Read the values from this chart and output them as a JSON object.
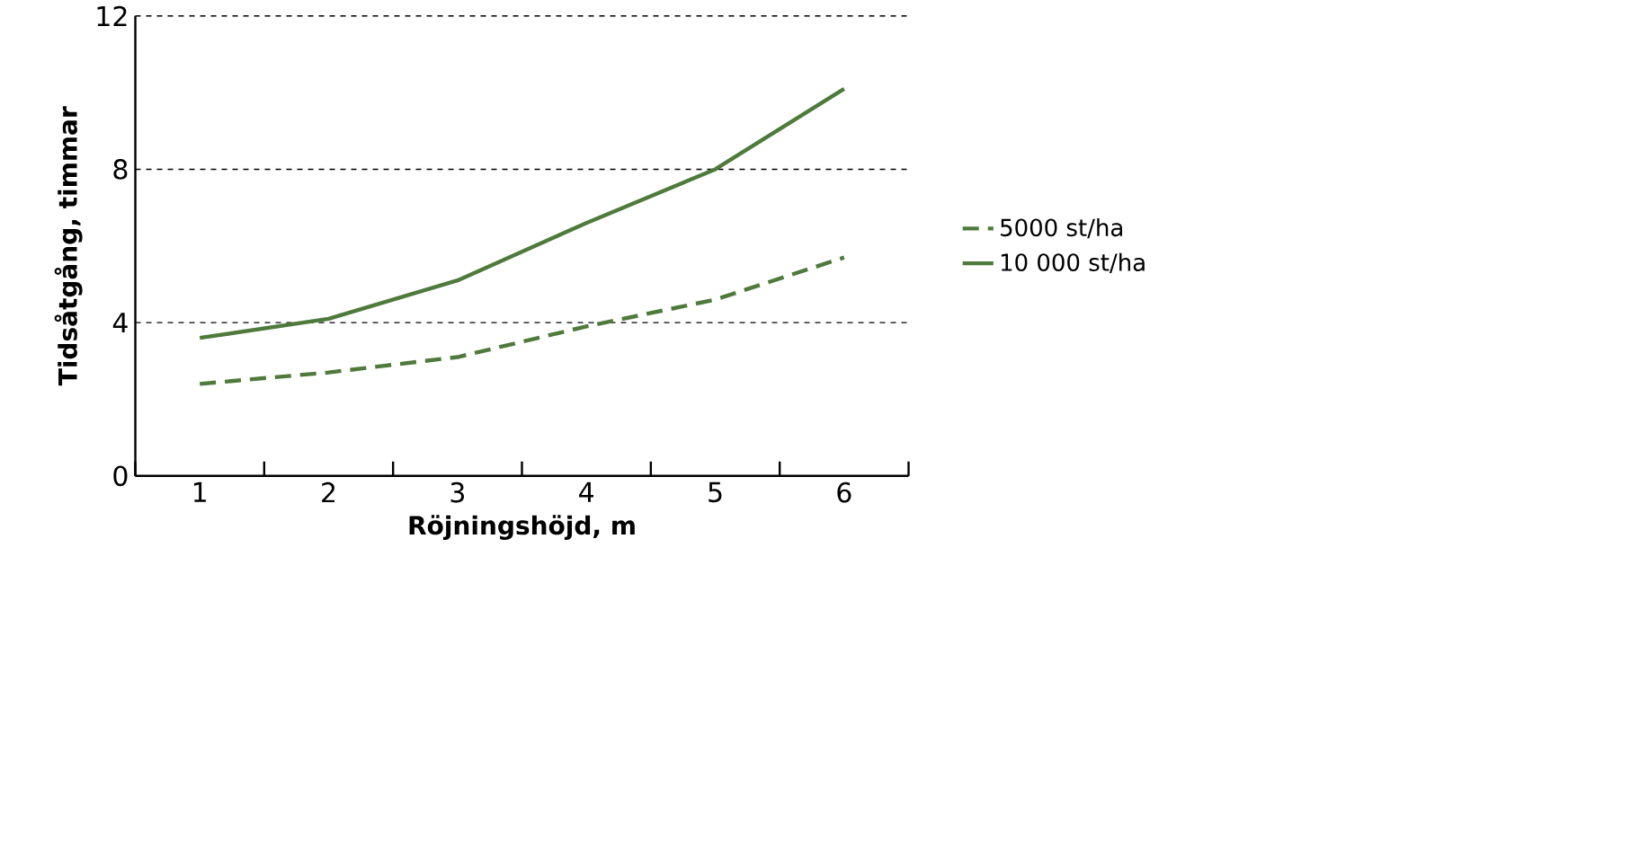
{
  "chart_data": {
    "type": "line",
    "xlabel": "Röjningshöjd, m",
    "ylabel": "Tidsåtgång, timmar",
    "categories": [
      "1",
      "2",
      "3",
      "4",
      "5",
      "6"
    ],
    "series": [
      {
        "name": "5000 st/ha",
        "color": "#4e7a3c",
        "line_style": "dashed",
        "values": [
          2.4,
          2.7,
          3.1,
          3.9,
          4.6,
          5.7
        ]
      },
      {
        "name": "10 000 st/ha",
        "color": "#4e7a3c",
        "line_style": "solid",
        "values": [
          3.6,
          4.1,
          5.1,
          6.6,
          8.0,
          10.1
        ]
      }
    ],
    "ylim": [
      0,
      12
    ],
    "yticks": [
      0,
      4,
      8,
      12
    ],
    "grid": "y",
    "legend": "right",
    "marker": "none"
  }
}
